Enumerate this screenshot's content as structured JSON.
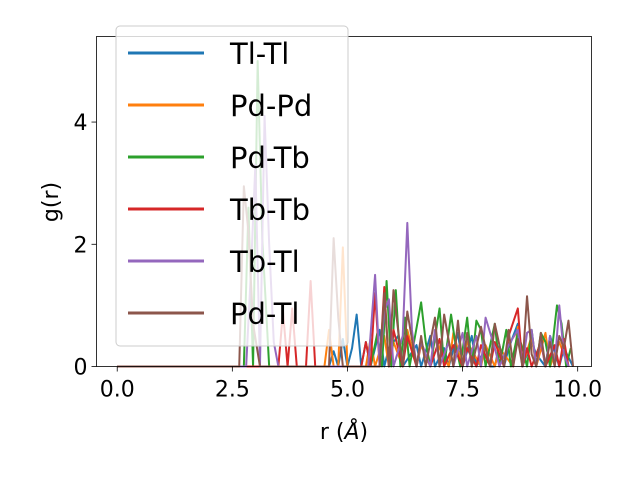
{
  "chart_data": {
    "type": "line",
    "title": "",
    "xlabel_prefix": "r (",
    "xlabel_unit": "Å",
    "xlabel_suffix": ")",
    "ylabel": "g(r)",
    "xlim": [
      -0.45,
      10.3
    ],
    "ylim": [
      0,
      5.4
    ],
    "xticks": [
      0.0,
      2.5,
      5.0,
      7.5,
      10.0
    ],
    "xtick_labels": [
      "0.0",
      "2.5",
      "5.0",
      "7.5",
      "10.0"
    ],
    "yticks": [
      0,
      2,
      4
    ],
    "ytick_labels": [
      "0",
      "2",
      "4"
    ],
    "grid": false,
    "legend_position": "upper-left",
    "series": [
      {
        "name": "Tl-Tl",
        "color": "#1f77b4",
        "x": [
          0,
          4.6,
          4.7,
          4.8,
          4.9,
          5.0,
          5.1,
          5.2,
          5.3,
          5.4,
          5.5,
          5.7,
          5.8,
          5.9,
          6.1,
          6.2,
          6.5,
          6.6,
          6.8,
          6.9,
          7.1,
          7.2,
          7.4,
          7.5,
          7.7,
          7.8,
          8.0,
          8.1,
          8.2,
          8.3,
          8.4,
          8.5,
          8.7,
          8.8,
          9.0,
          9.1,
          9.3,
          9.4,
          9.6,
          9.7,
          9.9
        ],
        "y": [
          0,
          0,
          0.25,
          0,
          0.45,
          0,
          0.3,
          0.85,
          0,
          0.4,
          0,
          0.6,
          0,
          0.3,
          0.5,
          0,
          0.35,
          0,
          0.5,
          0,
          0.3,
          0,
          0.55,
          0,
          0.5,
          0,
          0.3,
          0,
          0,
          0.35,
          0,
          0.3,
          0.7,
          0,
          0.4,
          0.2,
          0,
          0.5,
          0,
          0.3,
          0
        ]
      },
      {
        "name": "Pd-Pd",
        "color": "#ff7f0e",
        "x": [
          0,
          4.5,
          4.6,
          4.7,
          4.8,
          4.9,
          5.0,
          5.1,
          5.4,
          5.5,
          5.6,
          5.8,
          5.9,
          6.0,
          6.2,
          6.3,
          6.5,
          6.6,
          6.8,
          6.9,
          7.2,
          7.3,
          7.5,
          7.6,
          7.9,
          8.0,
          8.2,
          8.3,
          8.6,
          8.7,
          8.8,
          9.0,
          9.1,
          9.3,
          9.4,
          9.6,
          9.7,
          9.8
        ],
        "y": [
          0,
          0,
          0.6,
          0,
          0,
          1.95,
          0,
          0,
          0,
          0.45,
          0,
          0.5,
          0,
          0.4,
          0,
          0.6,
          0,
          0.35,
          0,
          0.45,
          0,
          0.55,
          0,
          0.4,
          0,
          0.35,
          0,
          0.3,
          0,
          0.65,
          0,
          0.5,
          0,
          0.55,
          0,
          0.4,
          0.2,
          0
        ]
      },
      {
        "name": "Pd-Tb",
        "color": "#2ca02c",
        "x": [
          0,
          2.75,
          2.85,
          2.95,
          3.05,
          3.15,
          3.3,
          5.5,
          5.65,
          5.75,
          5.85,
          5.95,
          6.05,
          6.15,
          6.25,
          6.35,
          6.6,
          6.7,
          6.8,
          7.0,
          7.1,
          7.25,
          7.35,
          7.45,
          7.6,
          7.7,
          7.8,
          7.9,
          8.0,
          8.2,
          8.3,
          8.45,
          8.55,
          8.7,
          8.8,
          8.9,
          9.0,
          9.1,
          9.2,
          9.3,
          9.4,
          9.55,
          9.65,
          9.75,
          9.85
        ],
        "y": [
          0,
          0,
          2.6,
          0,
          5.0,
          2.1,
          0,
          0,
          0.55,
          0,
          1.4,
          0,
          1.25,
          0,
          0.8,
          0,
          1.05,
          0.4,
          0,
          0.95,
          0,
          0.85,
          0.35,
          0,
          0.8,
          0,
          0.75,
          0.6,
          0,
          0.7,
          0,
          0.6,
          0,
          0.55,
          0.3,
          0,
          0.6,
          0,
          0.55,
          0.4,
          0,
          1.0,
          0.7,
          0,
          0.3
        ]
      },
      {
        "name": "Tb-Tb",
        "color": "#d62728",
        "x": [
          0,
          3.5,
          3.6,
          3.7,
          3.8,
          3.9,
          4.1,
          4.2,
          4.3,
          4.5,
          5.3,
          5.4,
          5.5,
          5.6,
          5.7,
          5.8,
          5.9,
          6.0,
          6.2,
          6.3,
          6.5,
          6.6,
          6.8,
          7.0,
          7.1,
          7.3,
          7.5,
          7.6,
          7.8,
          7.9,
          8.1,
          8.2,
          8.4,
          8.5,
          8.7,
          8.8,
          8.9,
          9.0,
          9.2,
          9.3,
          9.5,
          9.6,
          9.7,
          9.8
        ],
        "y": [
          0,
          0,
          0.9,
          0,
          0.95,
          0,
          0,
          1.4,
          0,
          0,
          0,
          0.4,
          0,
          1.2,
          0,
          1.3,
          0,
          0.6,
          0,
          0.5,
          0,
          0.4,
          0,
          0.45,
          0,
          0.35,
          0,
          0.3,
          0,
          0.35,
          0,
          0.4,
          0,
          0.5,
          0.95,
          0,
          0.3,
          0,
          0.4,
          0,
          0.35,
          0,
          0.45,
          0
        ]
      },
      {
        "name": "Tb-Tl",
        "color": "#9467bd",
        "x": [
          0,
          2.8,
          2.9,
          3.0,
          3.1,
          3.2,
          3.3,
          3.4,
          3.5,
          5.45,
          5.6,
          5.7,
          5.8,
          5.9,
          6.0,
          6.2,
          6.3,
          6.4,
          6.5,
          6.6,
          6.8,
          6.9,
          7.0,
          7.2,
          7.3,
          7.5,
          7.6,
          7.8,
          7.9,
          8.0,
          8.2,
          8.3,
          8.5,
          8.7,
          8.8,
          8.9,
          9.0,
          9.1,
          9.2,
          9.3,
          9.4,
          9.5,
          9.6,
          9.7,
          9.8
        ],
        "y": [
          0,
          0,
          1.5,
          3.3,
          0,
          4.1,
          2.0,
          0.4,
          0,
          0,
          1.5,
          0,
          0.9,
          1.1,
          0,
          0.5,
          2.35,
          0.6,
          0,
          0.4,
          0,
          0.6,
          0,
          0.4,
          0,
          0.55,
          0,
          0.5,
          0,
          0.8,
          0.3,
          0,
          0.35,
          0.6,
          0,
          0.55,
          0.6,
          0,
          0.45,
          0,
          0.5,
          0,
          1.0,
          0.2,
          0
        ]
      },
      {
        "name": "Pd-Tl",
        "color": "#8c564b",
        "x": [
          0,
          2.55,
          2.65,
          2.75,
          2.85,
          2.95,
          3.1,
          4.6,
          4.7,
          4.8,
          4.9,
          5.7,
          5.8,
          5.9,
          6.0,
          6.1,
          6.2,
          6.3,
          6.5,
          6.6,
          6.7,
          6.9,
          7.0,
          7.1,
          7.3,
          7.4,
          7.5,
          7.6,
          7.7,
          7.9,
          8.0,
          8.1,
          8.2,
          8.4,
          8.5,
          8.6,
          8.7,
          8.8,
          8.9,
          9.0,
          9.1,
          9.2,
          9.3,
          9.4,
          9.5,
          9.6,
          9.7,
          9.8,
          9.9
        ],
        "y": [
          0,
          0,
          0,
          2.95,
          2.2,
          0.7,
          0,
          0,
          2.1,
          0.8,
          0,
          0,
          1.2,
          0,
          1.25,
          0.6,
          0,
          0.9,
          0,
          0.5,
          0,
          0.8,
          0,
          0.85,
          0,
          0.75,
          0,
          0.55,
          0,
          0.65,
          0.3,
          0,
          0.7,
          0,
          0.6,
          0,
          0.45,
          0,
          1.15,
          0.2,
          0,
          0.55,
          0,
          0.4,
          0,
          0.5,
          0.3,
          0.75,
          0
        ]
      }
    ]
  }
}
